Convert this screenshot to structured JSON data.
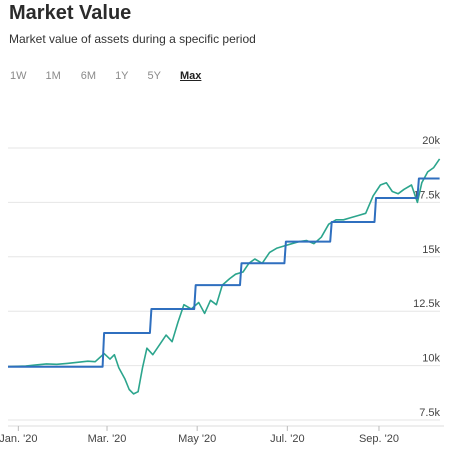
{
  "header": {
    "title": "Market Value",
    "subtitle": "Market value of assets during a specific period"
  },
  "ranges": [
    {
      "label": "1W",
      "active": false
    },
    {
      "label": "1M",
      "active": false
    },
    {
      "label": "6M",
      "active": false
    },
    {
      "label": "1Y",
      "active": false
    },
    {
      "label": "5Y",
      "active": false
    },
    {
      "label": "Max",
      "active": true
    }
  ],
  "colors": {
    "market_value": "#2ca58d",
    "step_series": "#2f6fbf",
    "grid": "#e6e6e6"
  },
  "chart_data": {
    "type": "line",
    "title": "Market Value",
    "subtitle": "Market value of assets during a specific period",
    "xlabel": "",
    "ylabel": "",
    "ylim": [
      7500,
      20000
    ],
    "ytick_values": [
      7500,
      10000,
      12500,
      15000,
      17500,
      20000
    ],
    "ytick_labels": [
      "7.5k",
      "10k",
      "12.5k",
      "15k",
      "17.5k",
      "20k"
    ],
    "xlim": [
      "2019-12-25",
      "2020-10-15"
    ],
    "xtick_values": [
      "2020-01-01",
      "2020-03-01",
      "2020-05-01",
      "2020-07-01",
      "2020-09-01"
    ],
    "xtick_labels": [
      "Jan. '20",
      "Mar. '20",
      "May '20",
      "Jul. '20",
      "Sep. '20"
    ],
    "grid": true,
    "series": [
      {
        "style": "step",
        "points": [
          [
            "2019-12-25",
            9950
          ],
          [
            "2020-02-27",
            9950
          ],
          [
            "2020-02-28",
            11500
          ],
          [
            "2020-03-30",
            11500
          ],
          [
            "2020-03-31",
            12600
          ],
          [
            "2020-04-29",
            12600
          ],
          [
            "2020-04-30",
            13700
          ],
          [
            "2020-05-30",
            13700
          ],
          [
            "2020-05-31",
            14700
          ],
          [
            "2020-06-29",
            14700
          ],
          [
            "2020-06-30",
            15700
          ],
          [
            "2020-07-30",
            15700
          ],
          [
            "2020-07-31",
            16600
          ],
          [
            "2020-08-29",
            16600
          ],
          [
            "2020-08-30",
            17700
          ],
          [
            "2020-09-27",
            17700
          ],
          [
            "2020-09-28",
            18600
          ],
          [
            "2020-10-12",
            18600
          ]
        ]
      },
      {
        "style": "line",
        "points": [
          [
            "2019-12-25",
            9950
          ],
          [
            "2020-01-06",
            9980
          ],
          [
            "2020-01-13",
            10030
          ],
          [
            "2020-01-20",
            10080
          ],
          [
            "2020-01-27",
            10060
          ],
          [
            "2020-02-03",
            10100
          ],
          [
            "2020-02-10",
            10150
          ],
          [
            "2020-02-17",
            10200
          ],
          [
            "2020-02-22",
            10180
          ],
          [
            "2020-02-28",
            10550
          ],
          [
            "2020-03-03",
            10300
          ],
          [
            "2020-03-06",
            10500
          ],
          [
            "2020-03-09",
            9900
          ],
          [
            "2020-03-13",
            9400
          ],
          [
            "2020-03-16",
            8900
          ],
          [
            "2020-03-19",
            8700
          ],
          [
            "2020-03-22",
            8800
          ],
          [
            "2020-03-25",
            9900
          ],
          [
            "2020-03-28",
            10800
          ],
          [
            "2020-04-01",
            10500
          ],
          [
            "2020-04-06",
            11000
          ],
          [
            "2020-04-10",
            11400
          ],
          [
            "2020-04-14",
            11100
          ],
          [
            "2020-04-18",
            12000
          ],
          [
            "2020-04-22",
            12800
          ],
          [
            "2020-04-27",
            12600
          ],
          [
            "2020-05-02",
            12900
          ],
          [
            "2020-05-06",
            12400
          ],
          [
            "2020-05-10",
            13000
          ],
          [
            "2020-05-14",
            12800
          ],
          [
            "2020-05-18",
            13700
          ],
          [
            "2020-05-23",
            14000
          ],
          [
            "2020-05-27",
            14200
          ],
          [
            "2020-06-01",
            14300
          ],
          [
            "2020-06-05",
            14700
          ],
          [
            "2020-06-09",
            14900
          ],
          [
            "2020-06-14",
            14700
          ],
          [
            "2020-06-19",
            15200
          ],
          [
            "2020-06-24",
            15400
          ],
          [
            "2020-06-29",
            15500
          ],
          [
            "2020-07-04",
            15600
          ],
          [
            "2020-07-09",
            15700
          ],
          [
            "2020-07-14",
            15750
          ],
          [
            "2020-07-19",
            15600
          ],
          [
            "2020-07-24",
            15900
          ],
          [
            "2020-07-29",
            16500
          ],
          [
            "2020-08-03",
            16700
          ],
          [
            "2020-08-08",
            16700
          ],
          [
            "2020-08-13",
            16800
          ],
          [
            "2020-08-18",
            16900
          ],
          [
            "2020-08-23",
            17000
          ],
          [
            "2020-08-28",
            17800
          ],
          [
            "2020-09-02",
            18300
          ],
          [
            "2020-09-06",
            18400
          ],
          [
            "2020-09-10",
            18000
          ],
          [
            "2020-09-14",
            17900
          ],
          [
            "2020-09-18",
            18100
          ],
          [
            "2020-09-23",
            18300
          ],
          [
            "2020-09-27",
            17500
          ],
          [
            "2020-09-30",
            18400
          ],
          [
            "2020-10-04",
            18900
          ],
          [
            "2020-10-08",
            19100
          ],
          [
            "2020-10-12",
            19500
          ]
        ]
      }
    ]
  }
}
